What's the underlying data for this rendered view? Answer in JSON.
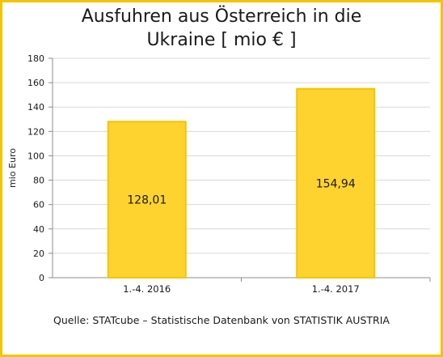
{
  "title_lines": [
    "Ausfuhren aus Österreich in die",
    "Ukraine  [ mio € ]"
  ],
  "source": "Quelle: STATcube – Statistische Datenbank von STATISTIK AUSTRIA",
  "colors": {
    "bar": "#fed32f",
    "bar_edge": "#f4c400",
    "frame": "#f4c400",
    "grid": "#d9d9d9"
  },
  "chart_data": {
    "type": "bar",
    "categories": [
      "1.-4. 2016",
      "1.-4. 2017"
    ],
    "values": [
      128.01,
      154.94
    ],
    "data_labels": [
      "128,01",
      "154,94"
    ],
    "ylabel": "mio Euro",
    "ylim": [
      0,
      180
    ],
    "yticks": [
      0,
      20,
      40,
      60,
      80,
      100,
      120,
      140,
      160,
      180
    ],
    "grid": true,
    "legend": "none"
  }
}
